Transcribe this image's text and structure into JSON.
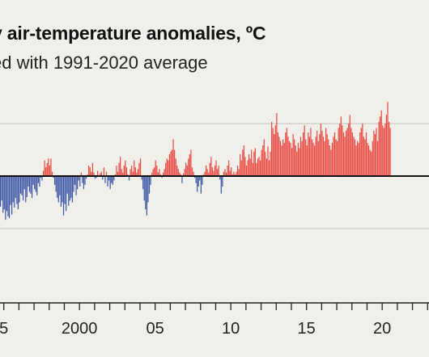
{
  "header": {
    "title": "y air-temperature anomalies, ºC",
    "subtitle": "ed with 1991-2020 average"
  },
  "colors": {
    "positive": "#e8473f",
    "negative": "#3b55a6",
    "zero_line": "#111111",
    "grid": "#d3d0c9",
    "background": "#f1efea"
  },
  "chart_data": {
    "type": "bar",
    "title": "y air-temperature anomalies, ºC",
    "subtitle": "ed with 1991-2020 average",
    "x_axis": {
      "tick_labels": [
        "5",
        "2000",
        "05",
        "10",
        "15",
        "20"
      ],
      "tick_years": [
        1995,
        2000,
        2005,
        2010,
        2015,
        2020
      ],
      "range": [
        1994.75,
        2023.1
      ]
    },
    "y_axis": {
      "range": [
        -1.1,
        1.15
      ],
      "gridlines": [
        -0.6,
        0,
        0.6
      ]
    },
    "grid": true,
    "series": [
      {
        "x_start": 1994.75,
        "step": 0.08333,
        "values": [
          -0.35,
          -0.28,
          -0.42,
          -0.38,
          -0.5,
          -0.4,
          -0.46,
          -0.48,
          -0.33,
          -0.44,
          -0.3,
          -0.36,
          -0.25,
          -0.32,
          -0.38,
          -0.3,
          -0.2,
          -0.22,
          -0.28,
          -0.15,
          -0.3,
          -0.24,
          -0.12,
          -0.18,
          -0.2,
          -0.25,
          -0.1,
          -0.15,
          -0.18,
          -0.22,
          -0.08,
          -0.12,
          -0.02,
          -0.05,
          0.06,
          0.18,
          0.1,
          0.15,
          0.2,
          0.12,
          0.2,
          0.05,
          -0.02,
          -0.1,
          -0.18,
          -0.25,
          -0.3,
          -0.22,
          -0.35,
          -0.3,
          -0.45,
          -0.32,
          -0.4,
          -0.2,
          -0.34,
          -0.28,
          -0.25,
          -0.3,
          -0.18,
          -0.1,
          -0.22,
          -0.15,
          -0.05,
          -0.12,
          0.04,
          -0.08,
          -0.15,
          -0.1,
          -0.03,
          0.02,
          0.12,
          0.1,
          0.05,
          0.15,
          0.04,
          -0.03,
          -0.02,
          0.06,
          0.0,
          0.03,
          0.05,
          -0.04,
          0.1,
          -0.08,
          0.05,
          -0.12,
          -0.05,
          -0.15,
          -0.08,
          -0.1,
          -0.05,
          0.02,
          0.12,
          0.05,
          0.15,
          0.22,
          0.08,
          0.04,
          0.12,
          0.18,
          0.1,
          0.02,
          -0.05,
          0.08,
          0.12,
          0.05,
          0.18,
          0.1,
          0.04,
          0.08,
          0.15,
          0.2,
          -0.04,
          -0.15,
          -0.28,
          -0.38,
          -0.45,
          -0.3,
          -0.2,
          -0.1,
          0.04,
          0.08,
          0.1,
          0.18,
          0.12,
          0.04,
          0.08,
          0.02,
          -0.02,
          0.04,
          0.08,
          0.15,
          0.2,
          0.18,
          0.25,
          0.28,
          0.3,
          0.42,
          0.3,
          0.2,
          0.12,
          0.08,
          0.04,
          0.02,
          -0.08,
          0.03,
          0.08,
          0.15,
          0.12,
          0.2,
          0.25,
          0.3,
          0.1,
          0.05,
          -0.02,
          -0.08,
          -0.18,
          -0.12,
          -0.05,
          -0.2,
          -0.1,
          0.02,
          0.05,
          0.12,
          0.08,
          0.04,
          0.15,
          0.22,
          0.1,
          0.06,
          0.12,
          0.18,
          0.08,
          0.12,
          -0.04,
          -0.2,
          -0.12,
          0.05,
          0.08,
          0.04,
          0.12,
          0.18,
          0.06,
          0.1,
          0.02,
          0.05,
          0.02,
          0.05,
          0.12,
          0.08,
          0.25,
          0.18,
          0.3,
          0.35,
          0.22,
          0.12,
          0.18,
          0.25,
          0.2,
          0.3,
          0.15,
          0.28,
          0.32,
          0.15,
          0.2,
          0.22,
          0.18,
          0.3,
          0.35,
          0.42,
          0.28,
          0.2,
          0.34,
          0.18,
          0.28,
          0.62,
          0.55,
          0.48,
          0.58,
          0.72,
          0.5,
          0.45,
          0.4,
          0.35,
          0.42,
          0.38,
          0.5,
          0.55,
          0.45,
          0.4,
          0.38,
          0.32,
          0.48,
          0.42,
          0.35,
          0.28,
          0.38,
          0.32,
          0.45,
          0.4,
          0.5,
          0.58,
          0.42,
          0.35,
          0.5,
          0.45,
          0.55,
          0.42,
          0.38,
          0.35,
          0.45,
          0.52,
          0.4,
          0.48,
          0.6,
          0.52,
          0.45,
          0.4,
          0.55,
          0.48,
          0.42,
          0.35,
          0.3,
          0.38,
          0.45,
          0.5,
          0.42,
          0.4,
          0.55,
          0.6,
          0.68,
          0.58,
          0.5,
          0.45,
          0.52,
          0.55,
          0.6,
          0.7,
          0.55,
          0.5,
          0.45,
          0.42,
          0.35,
          0.4,
          0.38,
          0.5,
          0.55,
          0.6,
          0.45,
          0.42,
          0.5,
          0.38,
          0.35,
          0.3,
          0.28,
          0.4,
          0.52,
          0.48,
          0.55,
          0.4,
          0.62,
          0.68,
          0.75,
          0.58,
          0.55,
          0.6,
          0.7,
          0.85,
          0.62,
          0.55
        ]
      }
    ]
  }
}
